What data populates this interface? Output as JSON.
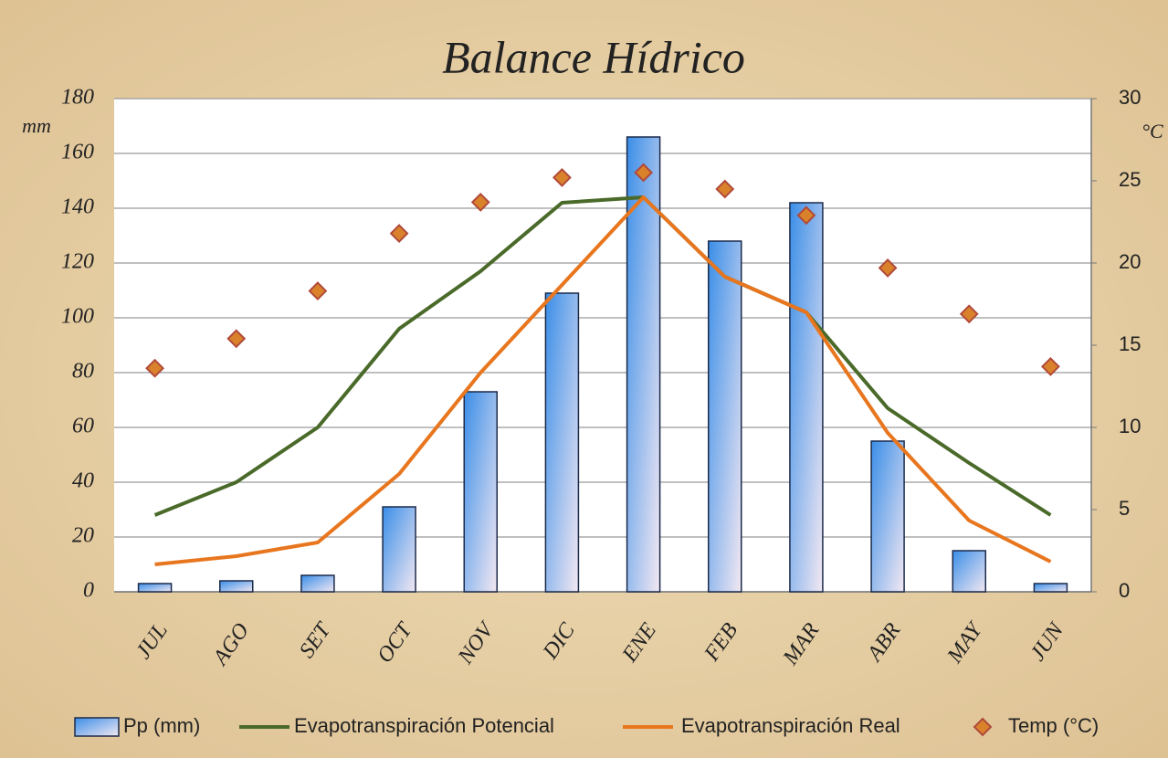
{
  "chart_data": {
    "type": "bar",
    "title": "Balance Hídrico",
    "y_label": "mm",
    "y2_label": "°C",
    "categories": [
      "JUL",
      "AGO",
      "SET",
      "OCT",
      "NOV",
      "DIC",
      "ENE",
      "FEB",
      "MAR",
      "ABR",
      "MAY",
      "JUN"
    ],
    "series": [
      {
        "name": "Pp (mm)",
        "type": "bar",
        "color": "#3a8ee8",
        "values": [
          3,
          4,
          6,
          31,
          73,
          109,
          166,
          128,
          142,
          55,
          15,
          3
        ]
      },
      {
        "name": "Evapotranspiración Potencial",
        "type": "line",
        "color": "#4a6a2a",
        "values": [
          28,
          40,
          60,
          96,
          117,
          142,
          144,
          115,
          102,
          67,
          47,
          28
        ]
      },
      {
        "name": "Evapotranspiración Real",
        "type": "line",
        "color": "#e8761e",
        "values": [
          10,
          13,
          18,
          43,
          80,
          112,
          144,
          115,
          102,
          58,
          26,
          11
        ]
      },
      {
        "name": "Temp (°C)",
        "type": "scatter",
        "axis": "y2",
        "color": "#d9822b",
        "values": [
          13.6,
          15.4,
          18.3,
          21.8,
          23.7,
          25.2,
          25.5,
          24.5,
          22.9,
          19.7,
          16.9,
          13.7
        ]
      }
    ],
    "ylim": [
      0,
      180
    ],
    "yticks": [
      0,
      20,
      40,
      60,
      80,
      100,
      120,
      140,
      160,
      180
    ],
    "y2lim": [
      0,
      30
    ],
    "y2ticks": [
      0,
      5,
      10,
      15,
      20,
      25,
      30
    ],
    "grid": true,
    "legend": "bottom"
  }
}
